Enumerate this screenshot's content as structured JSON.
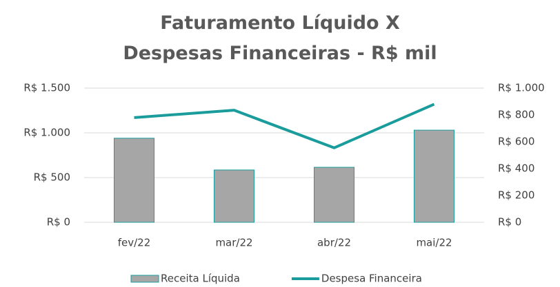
{
  "chart_data": {
    "type": "bar_line",
    "title": "Faturamento Líquido X Despesas Financeiras - R$ mil",
    "categories": [
      "fev/22",
      "mar/22",
      "abr/22",
      "mai/22"
    ],
    "series": [
      {
        "name": "Receita Líquida",
        "type": "bar",
        "color": "#a6a6a6",
        "edge_color": "#1a9c9c",
        "values": [
          940,
          585,
          615,
          1030
        ]
      },
      {
        "name": "Despesa Financeira",
        "type": "line",
        "axis": "y2",
        "color": "#1a9c9c",
        "values": [
          780,
          835,
          555,
          880
        ]
      }
    ],
    "ylim": [
      0,
      1500
    ],
    "yticks": [
      {
        "value": 0,
        "label": "R$ 0"
      },
      {
        "value": 500,
        "label": "R$ 500"
      },
      {
        "value": 1000,
        "label": "R$ 1.000"
      },
      {
        "value": 1500,
        "label": "R$ 1.500"
      }
    ],
    "y2lim": [
      0,
      1000
    ],
    "y2ticks": [
      {
        "value": 0,
        "label": "R$ 0"
      },
      {
        "value": 200,
        "label": "R$ 200"
      },
      {
        "value": 400,
        "label": "R$ 400"
      },
      {
        "value": 600,
        "label": "R$ 600"
      },
      {
        "value": 800,
        "label": "R$ 800"
      },
      {
        "value": 1000,
        "label": "R$ 1.000"
      }
    ],
    "grid": true,
    "legend": "bottom"
  }
}
